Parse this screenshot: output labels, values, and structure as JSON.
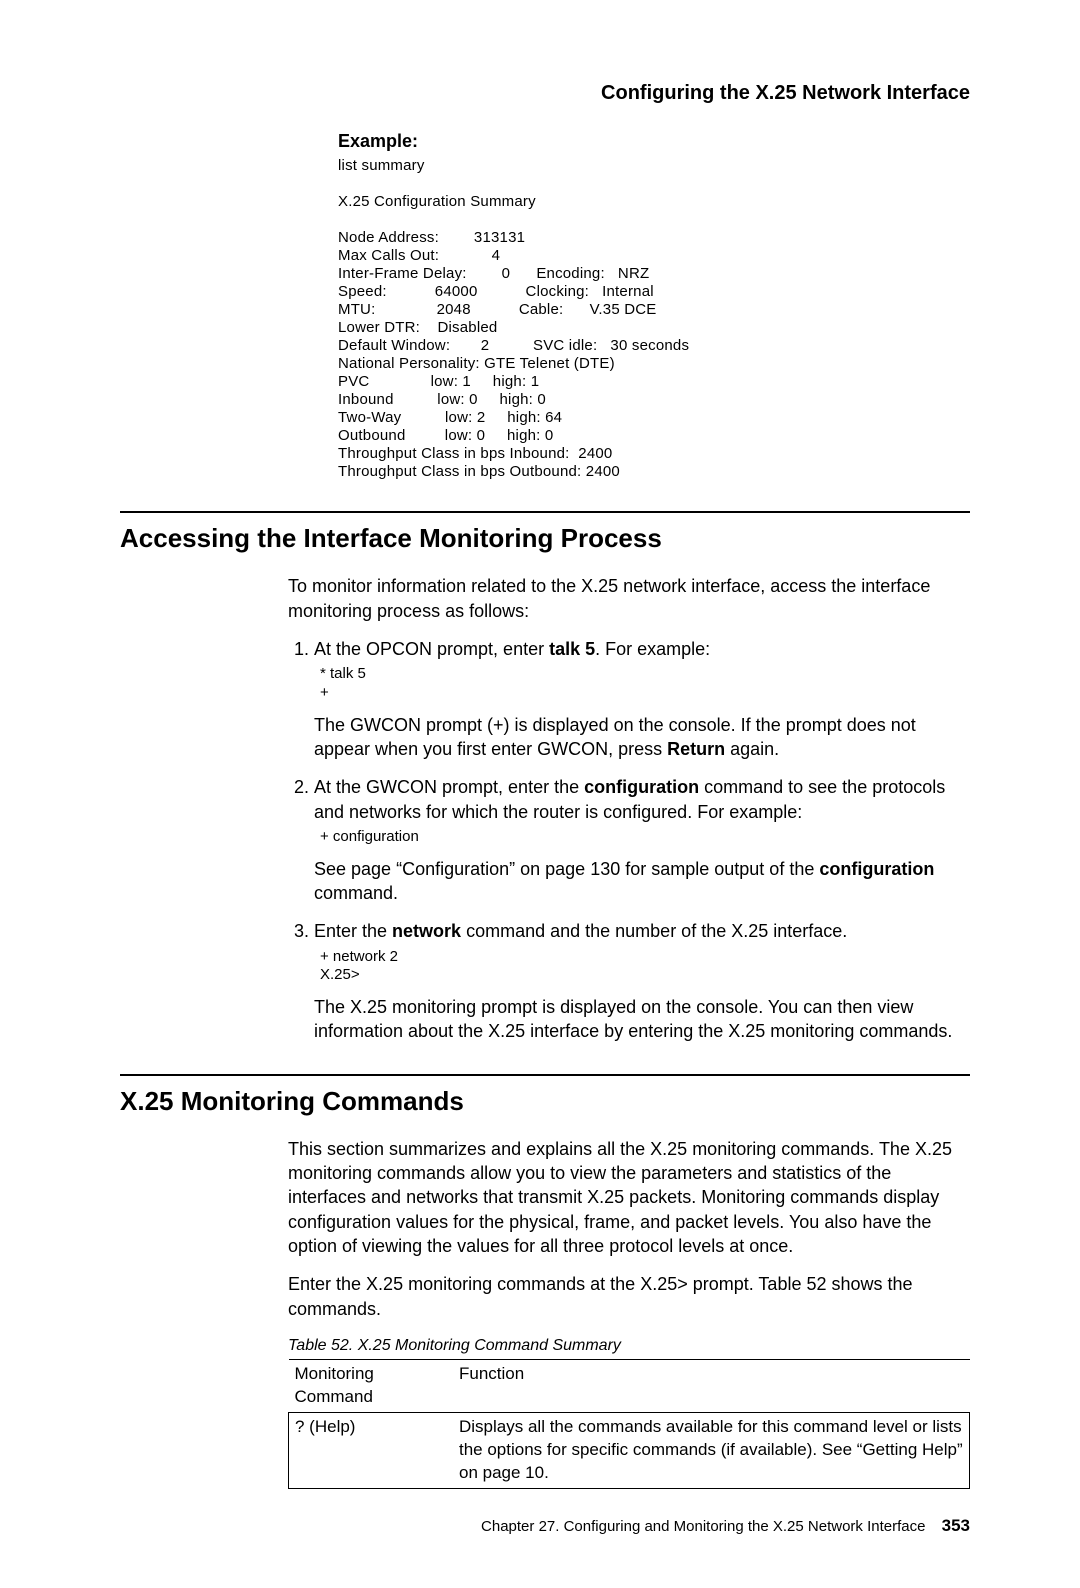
{
  "header": {
    "running_title": "Configuring the X.25 Network Interface"
  },
  "example": {
    "label": "Example:",
    "code": "list summary\n\nX.25 Configuration Summary\n\nNode Address:        313131\nMax Calls Out:            4\nInter-Frame Delay:        0      Encoding:   NRZ\nSpeed:           64000           Clocking:   Internal\nMTU:              2048           Cable:      V.35 DCE\nLower DTR:    Disabled\nDefault Window:       2          SVC idle:   30 seconds\nNational Personality: GTE Telenet (DTE)\nPVC              low: 1     high: 1\nInbound          low: 0     high: 0\nTwo-Way          low: 2     high: 64\nOutbound         low: 0     high: 0\nThroughput Class in bps Inbound:  2400\nThroughput Class in bps Outbound: 2400"
  },
  "section1": {
    "heading": "Accessing the Interface Monitoring Process",
    "intro": "To monitor information related to the X.25 network interface, access the interface monitoring process as follows:",
    "steps": [
      {
        "text_pre": "At the OPCON prompt, enter ",
        "bold1": "talk 5",
        "text_post": ". For example:",
        "code": "* talk 5\n+",
        "para_pre": "The GWCON prompt (+) is displayed on the console. If the prompt does not appear when you first enter GWCON, press ",
        "para_bold": "Return",
        "para_post": " again."
      },
      {
        "text_pre": "At the GWCON prompt, enter the ",
        "bold1": "configuration",
        "text_post": " command to see the protocols and networks for which the router is configured. For example:",
        "code": "+ configuration",
        "para_pre": "See page “Configuration” on page 130 for sample output of the ",
        "para_bold": "configuration",
        "para_post": " command."
      },
      {
        "text_pre": "Enter the ",
        "bold1": "network",
        "text_post": " command and the number of the X.25 interface.",
        "code": "+ network 2\nX.25>",
        "para_pre": "The X.25 monitoring prompt is displayed on the console. You can then view information about the X.25 interface by entering the X.25 monitoring commands.",
        "para_bold": "",
        "para_post": ""
      }
    ]
  },
  "section2": {
    "heading": "X.25 Monitoring Commands",
    "para1": "This section summarizes and explains all the X.25 monitoring commands. The X.25 monitoring commands allow you to view the parameters and statistics of the interfaces and networks that transmit X.25 packets. Monitoring commands display configuration values for the physical, frame, and packet levels. You also have the option of viewing the values for all three protocol levels at once.",
    "para2_pre": "Enter the X.25 monitoring commands at the ",
    "para2_code": "X.25>",
    "para2_post": " prompt. Table 52 shows the commands.",
    "table": {
      "caption": "Table 52. X.25 Monitoring Command Summary",
      "col1_header": "Monitoring Command",
      "col2_header": "Function",
      "rows": [
        {
          "cmd": "? (Help)",
          "func": "Displays all the commands available for this command level or lists the options for specific commands (if available). See “Getting Help” on page 10."
        }
      ]
    }
  },
  "footer": {
    "chapter": "Chapter 27. Configuring and Monitoring the X.25 Network Interface",
    "page": "353"
  }
}
